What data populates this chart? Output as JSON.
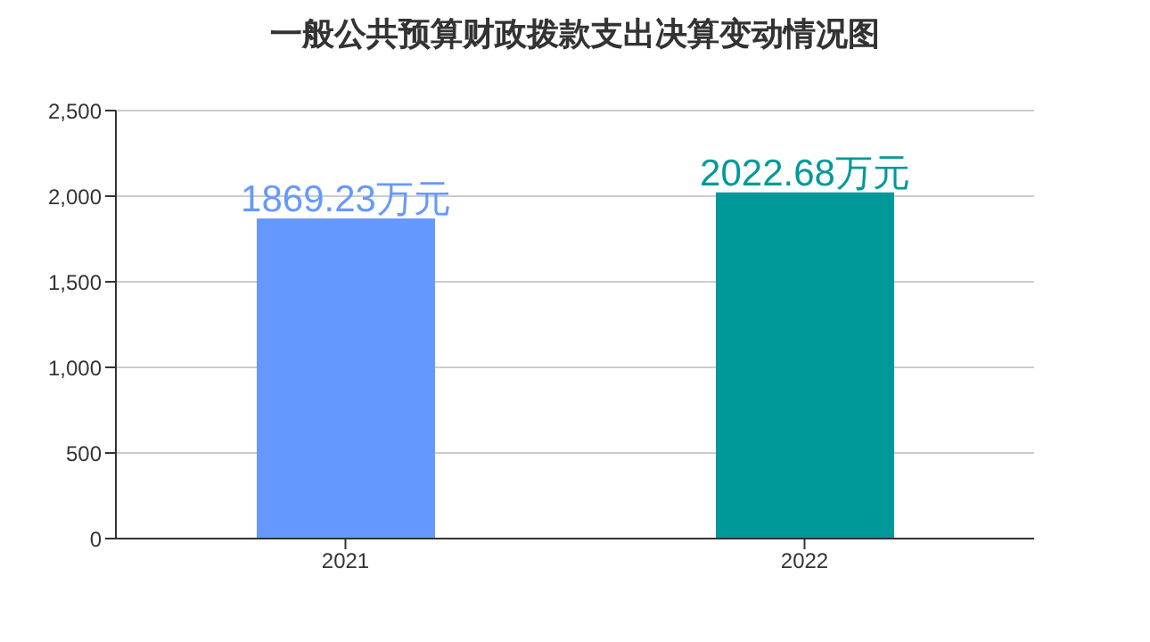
{
  "chart_data": {
    "type": "bar",
    "title": "一般公共预算财政拨款支出决算变动情况图",
    "categories": [
      "2021",
      "2022"
    ],
    "values": [
      1869.23,
      2022.68
    ],
    "colors": [
      "#6699ff",
      "#009999"
    ],
    "value_labels": [
      "1869.23万元",
      "2022.68万元"
    ],
    "ylim": [
      0,
      2500
    ],
    "yticks": [
      0,
      500,
      {
        "value": 1000,
        "label": "1,000"
      },
      {
        "value": 1500,
        "label": "1,500"
      },
      {
        "value": 2000,
        "label": "2,000"
      },
      {
        "value": 2500,
        "label": "2,500"
      }
    ],
    "grid": "y",
    "legend": false
  }
}
